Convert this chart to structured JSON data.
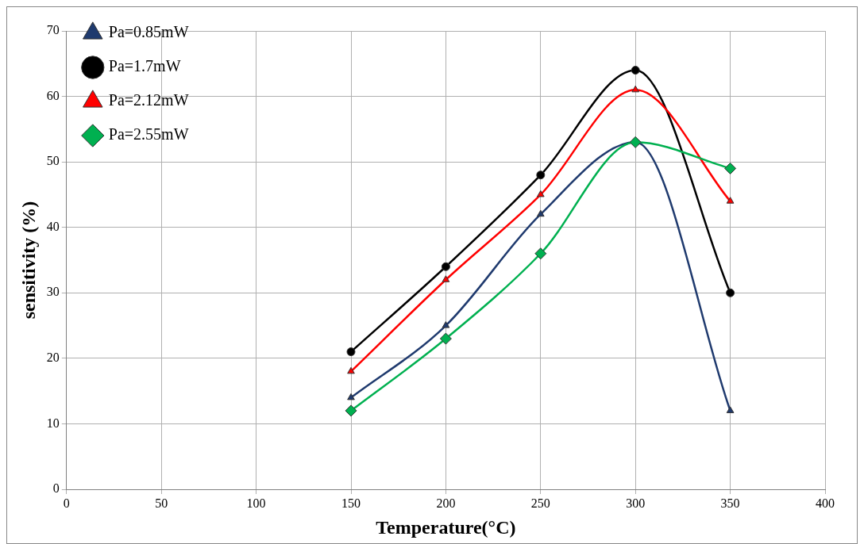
{
  "chart_data": {
    "type": "line",
    "xlabel": "Temperature(°C)",
    "ylabel": "sensitivity (%)",
    "x": [
      150,
      200,
      250,
      300,
      350
    ],
    "series": [
      {
        "name": "Pa=0.85mW",
        "color": "#1f3a6e",
        "marker": "triangle",
        "values": [
          14,
          25,
          42,
          53,
          12
        ]
      },
      {
        "name": "Pa=1.7mW",
        "color": "#000000",
        "marker": "circle",
        "values": [
          21,
          34,
          48,
          64,
          30
        ]
      },
      {
        "name": "Pa=2.12mW",
        "color": "#ff0000",
        "marker": "triangle",
        "values": [
          18,
          32,
          45,
          61,
          44
        ]
      },
      {
        "name": "Pa=2.55mW",
        "color": "#00b050",
        "marker": "diamond",
        "values": [
          12,
          23,
          36,
          53,
          49
        ]
      }
    ],
    "xlim": [
      0,
      400
    ],
    "xticks": [
      0,
      50,
      100,
      150,
      200,
      250,
      300,
      350,
      400
    ],
    "ylim": [
      0,
      70
    ],
    "yticks": [
      0,
      10,
      20,
      30,
      40,
      50,
      60,
      70
    ],
    "grid": true,
    "legend": "top left",
    "line_style": "solid"
  }
}
